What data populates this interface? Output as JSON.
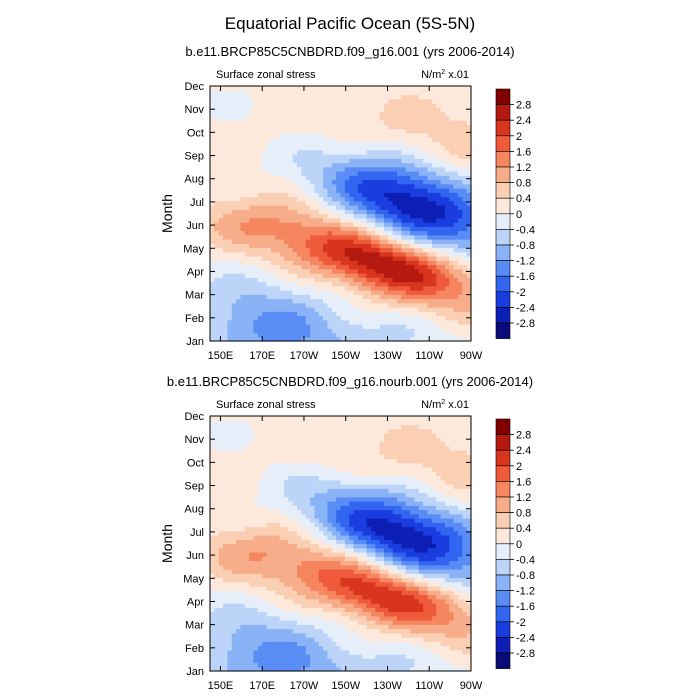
{
  "figure": {
    "title": "Equatorial Pacific Ocean (5S-5N)"
  },
  "chart_data": [
    {
      "type": "heatmap",
      "title": "b.e11.BRCP85C5CNBDRD.f09_g16.001 (yrs 2006-2014)",
      "left_label": "Surface zonal stress",
      "units_label": "N/m",
      "units_sup": "2",
      "units_suffix": " x.01",
      "ylabel": "Month",
      "xlabel": "",
      "x_ticks": [
        "150E",
        "170E",
        "170W",
        "150W",
        "130W",
        "110W",
        "90W"
      ],
      "y_ticks": [
        "Jan",
        "Feb",
        "Mar",
        "Apr",
        "May",
        "Jun",
        "Jul",
        "Aug",
        "Sep",
        "Oct",
        "Nov",
        "Dec"
      ],
      "colorbar_levels": [
        2.8,
        2.4,
        2,
        1.6,
        1.2,
        0.8,
        0.4,
        0,
        -0.4,
        -0.8,
        -1.2,
        -1.6,
        -2,
        -2.4,
        -2.8
      ],
      "features": {
        "positive_peak": {
          "lon_deg_east": 225,
          "month": 4.4,
          "value": 2.8
        },
        "negative_peak": {
          "lon_deg_east": 240,
          "month": 7.0,
          "value": -2.8
        }
      }
    },
    {
      "type": "heatmap",
      "title": "b.e11.BRCP85C5CNBDRD.f09_g16.nourb.001 (yrs 2006-2014)",
      "left_label": "Surface zonal stress",
      "units_label": "N/m",
      "units_sup": "2",
      "units_suffix": " x.01",
      "ylabel": "Month",
      "xlabel": "",
      "x_ticks": [
        "150E",
        "170E",
        "170W",
        "150W",
        "130W",
        "110W",
        "90W"
      ],
      "y_ticks": [
        "Jan",
        "Feb",
        "Mar",
        "Apr",
        "May",
        "Jun",
        "Jul",
        "Aug",
        "Sep",
        "Oct",
        "Nov",
        "Dec"
      ],
      "colorbar_levels": [
        2.8,
        2.4,
        2,
        1.6,
        1.2,
        0.8,
        0.4,
        0,
        -0.4,
        -0.8,
        -1.2,
        -1.6,
        -2,
        -2.4,
        -2.8
      ],
      "features": {
        "positive_peak": {
          "lon_deg_east": 225,
          "month": 4.4,
          "value": 2.4
        },
        "negative_peak": {
          "lon_deg_east": 235,
          "month": 7.0,
          "value": -2.8
        }
      }
    }
  ],
  "colors": {
    "palette": [
      "#0a0a78",
      "#0d1fb4",
      "#1a3de0",
      "#3366f0",
      "#5a8cf5",
      "#8ab2f7",
      "#bcd4f8",
      "#e6eefa",
      "#fde8dc",
      "#fbcfb4",
      "#f8ad8a",
      "#f58660",
      "#ee5a3a",
      "#d8341e",
      "#b41a10",
      "#800000"
    ]
  }
}
